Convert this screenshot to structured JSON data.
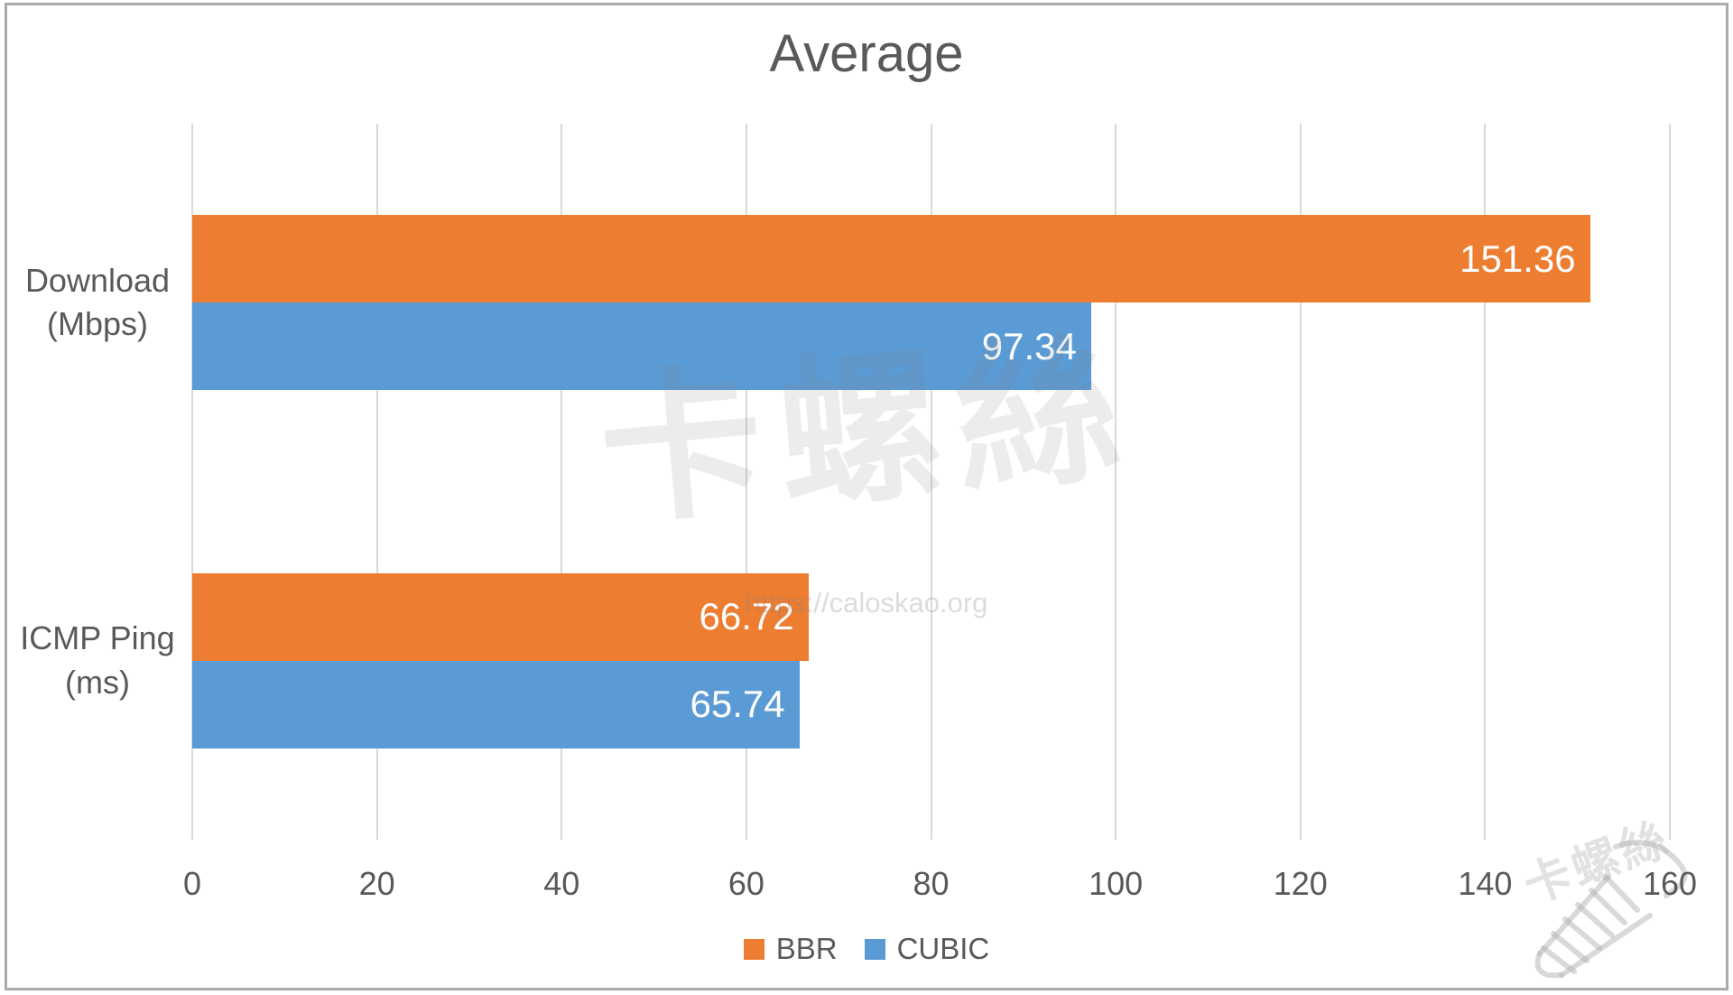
{
  "title": "Average",
  "watermark": {
    "text": "卡螺絲",
    "url": "https://caloskao.org"
  },
  "colors": {
    "bbr_orange": "#ED7D31",
    "cubic_blue": "#5B9BD5",
    "text_gray": "#595959",
    "gridline_gray": "#D9D9D9",
    "data_label_white": "#FFFFFF",
    "border_gray": "#ABABAB"
  },
  "chart_data": {
    "type": "bar",
    "orientation": "horizontal",
    "title": "Average",
    "categories": [
      "Download (Mbps)",
      "ICMP Ping (ms)"
    ],
    "series": [
      {
        "name": "BBR",
        "color": "#ED7D31",
        "values": [
          151.36,
          66.72
        ]
      },
      {
        "name": "CUBIC",
        "color": "#5B9BD5",
        "values": [
          97.34,
          65.74
        ]
      }
    ],
    "value_label_decimals": 2,
    "xlabel": "",
    "ylabel": "",
    "xlim": [
      0,
      160
    ],
    "xticks": [
      0,
      20,
      40,
      60,
      80,
      100,
      120,
      140,
      160
    ],
    "grid": "vertical",
    "legend_position": "bottom",
    "data_labels": "inside-end"
  }
}
